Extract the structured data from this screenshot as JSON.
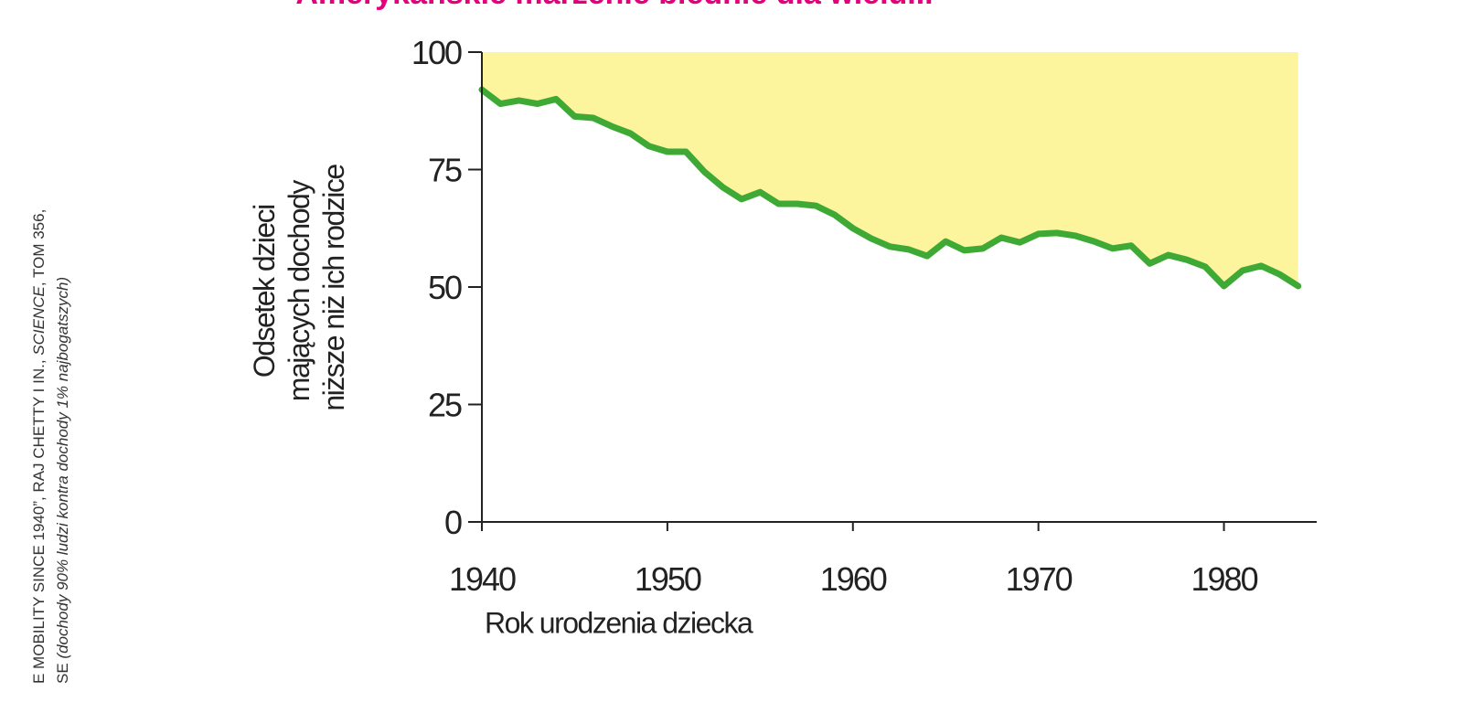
{
  "chart_data": {
    "type": "area-line",
    "title": "Amerykańskie marzenie blednie dla wielu...",
    "y_label": [
      "Odsetek dzieci",
      "mających dochody",
      "niższe niż ich rodzice"
    ],
    "x_label": "Rok urodzenia dziecka",
    "source": [
      [
        "E MOBILITY SINCE 1940”, RAJ CHETTY I IN., ",
        "SCIENCE",
        ", TOM 356,"
      ],
      [
        "SE ",
        "(dochody 90% ludzi kontra dochody 1% najbogatszych)"
      ]
    ],
    "x": [
      1940,
      1941,
      1942,
      1943,
      1944,
      1945,
      1946,
      1947,
      1948,
      1949,
      1950,
      1951,
      1952,
      1953,
      1954,
      1955,
      1956,
      1957,
      1958,
      1959,
      1960,
      1961,
      1962,
      1963,
      1964,
      1965,
      1966,
      1967,
      1968,
      1969,
      1970,
      1971,
      1972,
      1973,
      1974,
      1975,
      1976,
      1977,
      1978,
      1979,
      1980,
      1981,
      1982,
      1983,
      1984
    ],
    "values": [
      92,
      89,
      89.7,
      89,
      90,
      86.3,
      86,
      84.2,
      82.7,
      80,
      78.8,
      78.8,
      74.5,
      71.2,
      68.7,
      70.2,
      67.7,
      67.7,
      67.3,
      65.4,
      62.5,
      60.3,
      58.6,
      58,
      56.6,
      59.7,
      57.8,
      58.2,
      60.5,
      59.5,
      61.3,
      61.5,
      60.9,
      59.7,
      58.2,
      58.8,
      55,
      56.8,
      55.8,
      54.3,
      50.2,
      53.5,
      54.5,
      52.7,
      50.2
    ],
    "line_color": "#3ea935",
    "fill_color": "#fdf49e",
    "title_color": "#e4007c",
    "xlim": [
      1940,
      1985
    ],
    "ylim": [
      0,
      100
    ],
    "xticks": [
      1940,
      1950,
      1960,
      1970,
      1980
    ],
    "yticks": [
      0,
      25,
      50,
      75,
      100
    ]
  }
}
